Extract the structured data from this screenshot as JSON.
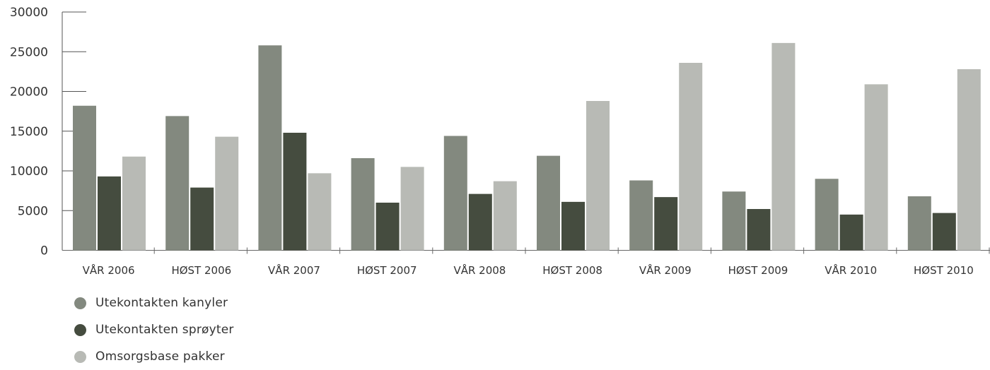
{
  "chart_data": {
    "type": "bar",
    "categories": [
      "VÅR 2006",
      "HØST 2006",
      "VÅR 2007",
      "HØST 2007",
      "VÅR 2008",
      "HØST 2008",
      "VÅR 2009",
      "HØST 2009",
      "VÅR 2010",
      "HØST 2010"
    ],
    "series": [
      {
        "name": "Utekontakten kanyler",
        "color": "#83897f",
        "values": [
          18200,
          16900,
          25800,
          11600,
          14400,
          11900,
          8800,
          7400,
          9000,
          6800
        ]
      },
      {
        "name": "Utekontakten sprøyter",
        "color": "#454c3f",
        "values": [
          9300,
          7900,
          14800,
          6000,
          7100,
          6100,
          6700,
          5200,
          4500,
          4700
        ]
      },
      {
        "name": "Omsorgsbase pakker",
        "color": "#b8bab5",
        "values": [
          11800,
          14300,
          9700,
          10500,
          8700,
          18800,
          23600,
          26100,
          20900,
          22800
        ]
      }
    ],
    "yticks": [
      "0",
      "5000",
      "10000",
      "15000",
      "20000",
      "25000",
      "30000"
    ],
    "ylim": [
      0,
      30000
    ],
    "grid": false,
    "legend_position": "bottom-left"
  }
}
